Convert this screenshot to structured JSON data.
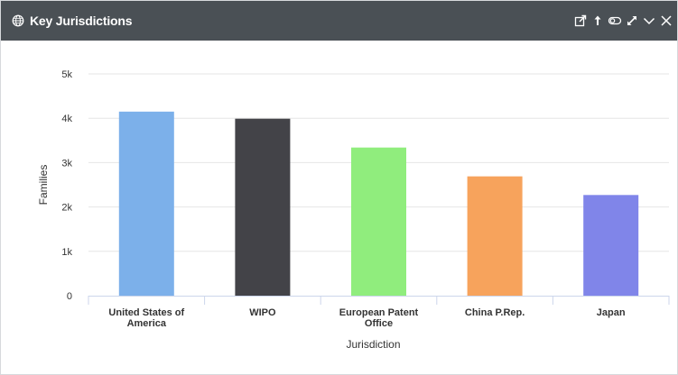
{
  "widget": {
    "title": "Key Jurisdictions",
    "header_icons": [
      "external-link-icon",
      "upload-icon",
      "toggle-icon",
      "expand-icon",
      "chevron-down-icon",
      "close-icon"
    ]
  },
  "chart_data": {
    "type": "bar",
    "title": "",
    "xlabel": "Jurisdiction",
    "ylabel": "Families",
    "categories": [
      "United States of America",
      "WIPO",
      "European Patent Office",
      "China P.Rep.",
      "Japan"
    ],
    "category_display_lines": [
      [
        "United States of",
        "America"
      ],
      [
        "WIPO"
      ],
      [
        "European Patent",
        "Office"
      ],
      [
        "China P.Rep."
      ],
      [
        "Japan"
      ]
    ],
    "values": [
      4150,
      3990,
      3340,
      2690,
      2270
    ],
    "colors": [
      "#7cb0ea",
      "#434348",
      "#90ed7d",
      "#f7a35c",
      "#8085e9"
    ],
    "ylim": [
      0,
      5000
    ],
    "yticks": [
      0,
      1000,
      2000,
      3000,
      4000,
      5000
    ],
    "ytick_labels": [
      "0",
      "1k",
      "2k",
      "3k",
      "4k",
      "5k"
    ],
    "grid": true,
    "legend": "none"
  }
}
